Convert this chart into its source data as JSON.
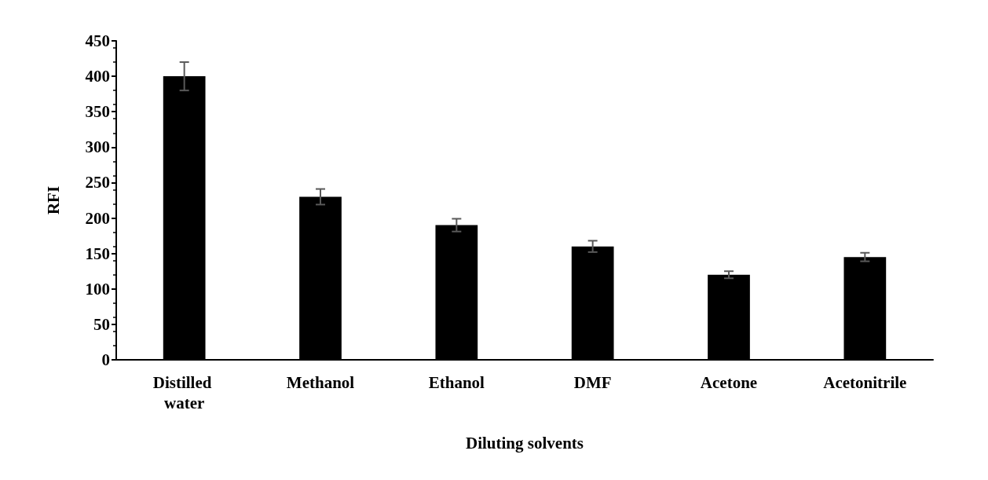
{
  "chart_data": {
    "type": "bar",
    "xlabel": "Diluting solvents",
    "ylabel": "RFI",
    "categories": [
      "Distilled water",
      "Methanol",
      "Ethanol",
      "DMF",
      "Acetone",
      "Acetonitrile"
    ],
    "values": [
      400,
      230,
      190,
      160,
      120,
      145
    ],
    "errors": [
      20,
      11,
      9,
      8,
      5,
      6
    ],
    "color": "#000000",
    "ylim": [
      0,
      450
    ],
    "yticks": [
      0,
      50,
      100,
      150,
      200,
      250,
      300,
      350,
      400,
      450
    ],
    "grid": false
  }
}
